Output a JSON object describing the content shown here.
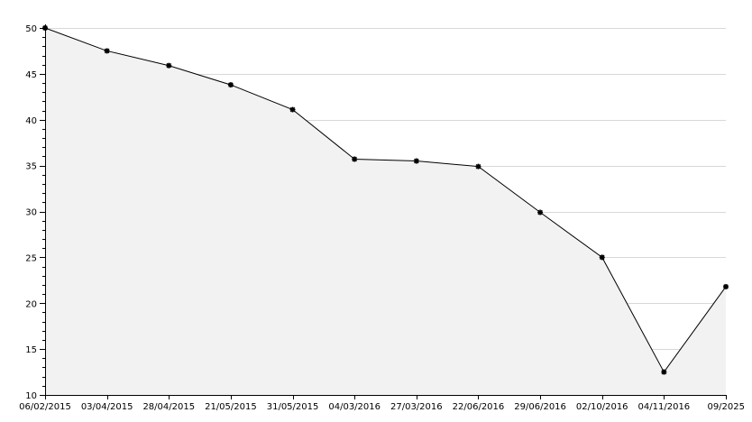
{
  "chart_data": {
    "type": "area",
    "title": "",
    "xlabel": "",
    "ylabel": "",
    "x": [
      "06/02/2015",
      "03/04/2015",
      "28/04/2015",
      "21/05/2015",
      "31/05/2015",
      "04/03/2016",
      "27/03/2016",
      "22/06/2016",
      "29/06/2016",
      "02/10/2016",
      "04/11/2016",
      "09/2025"
    ],
    "series": [
      {
        "values": [
          50,
          47.5,
          45.9,
          43.8,
          41.1,
          35.7,
          35.5,
          34.9,
          29.9,
          25,
          12.5,
          21.8
        ]
      }
    ],
    "ylim": [
      10,
      50
    ],
    "yticks": [
      10,
      15,
      20,
      25,
      30,
      35,
      40,
      45,
      50
    ],
    "grid": true,
    "legend": "none",
    "colors": {
      "line": "#000000",
      "fill": "#f2f2f2",
      "grid": "#d8d8d8",
      "axis": "#000000",
      "marker": "#000000"
    }
  }
}
